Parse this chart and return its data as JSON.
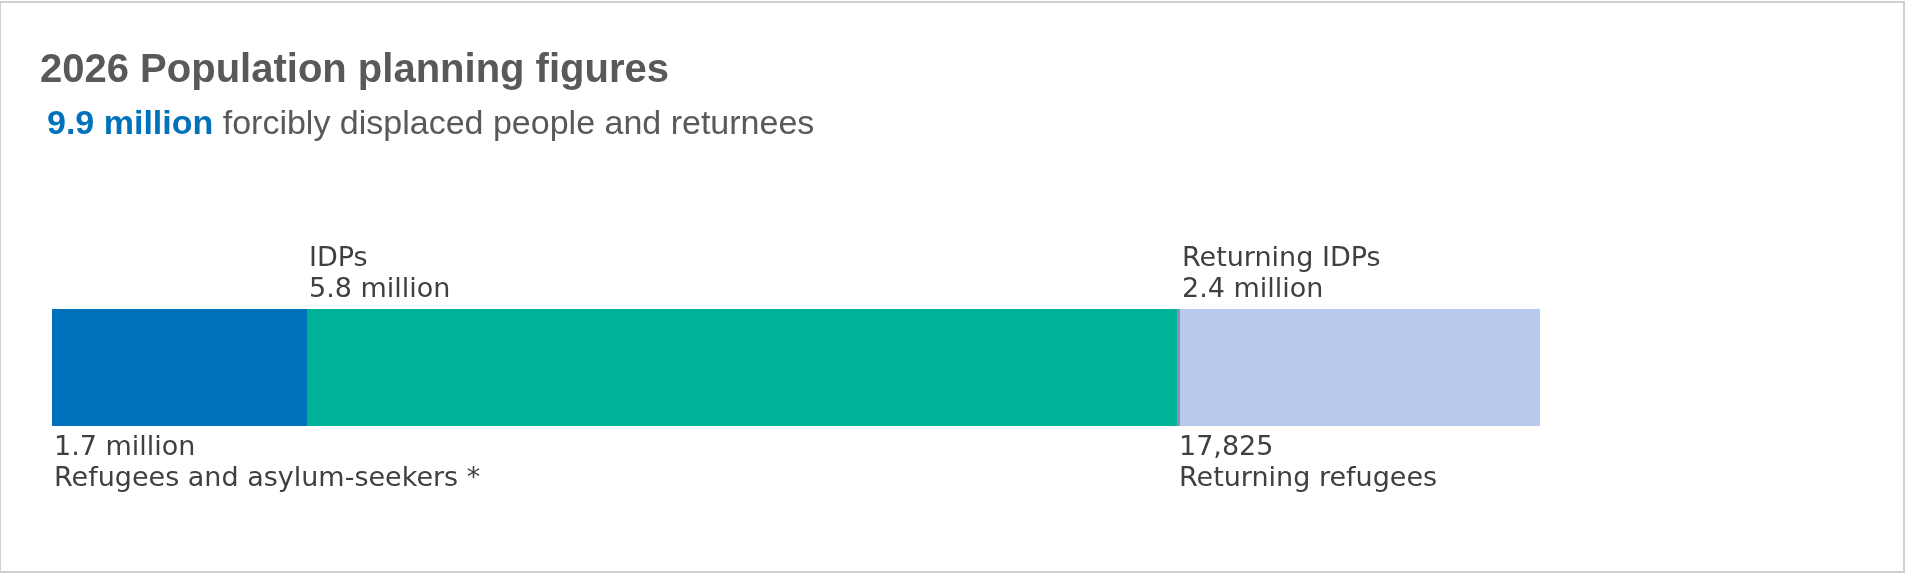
{
  "chart_data": {
    "type": "bar",
    "orientation": "horizontal",
    "stacked": true,
    "title": "2026 Population planning figures",
    "subtitle": "9.9 million forcibly displaced people and returnees",
    "categories": [
      null
    ],
    "series": [
      {
        "name": "Refugees and asylum-seekers *",
        "color": "#0072bc",
        "values": [
          1700000
        ],
        "value_labels": [
          "1.7 million"
        ]
      },
      {
        "name": "IDPs",
        "color": "#00b398",
        "values": [
          5800000
        ],
        "value_labels": [
          "5.8 million"
        ]
      },
      {
        "name": "Returning refugees",
        "color": "#8e8fb5",
        "values": [
          17825
        ],
        "value_labels": [
          "17,825"
        ]
      },
      {
        "name": "Returning IDPs",
        "color": "#b7c9ed",
        "values": [
          2400000
        ],
        "value_labels": [
          "2.4 million"
        ]
      }
    ],
    "legend": false,
    "tick_labels": false
  }
}
